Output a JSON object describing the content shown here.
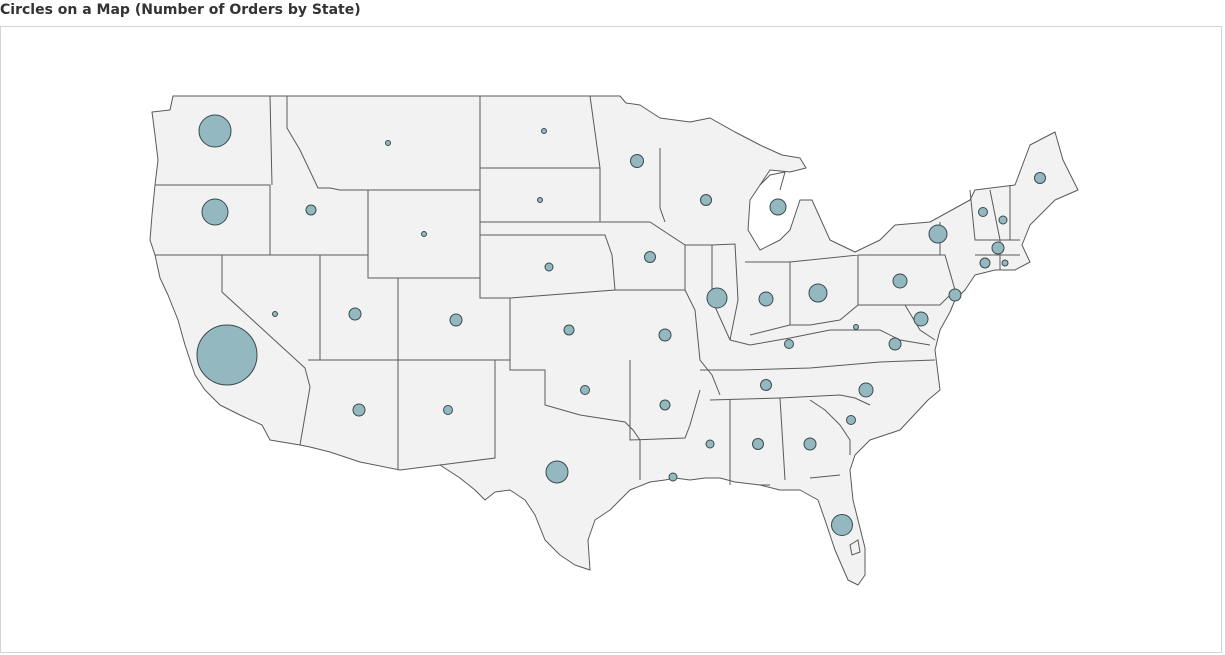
{
  "title": "Circles on a Map (Number of Orders by State)",
  "colors": {
    "bubble_fill": "#93b8bf",
    "bubble_stroke": "#3a4a4d",
    "land_fill": "#f2f2f2",
    "state_border": "#5a5a5a",
    "frame_border": "#d4d4d4"
  },
  "map": {
    "region": "Contiguous United States",
    "mark_type": "circle",
    "size_encoding": "Number of Orders"
  }
}
